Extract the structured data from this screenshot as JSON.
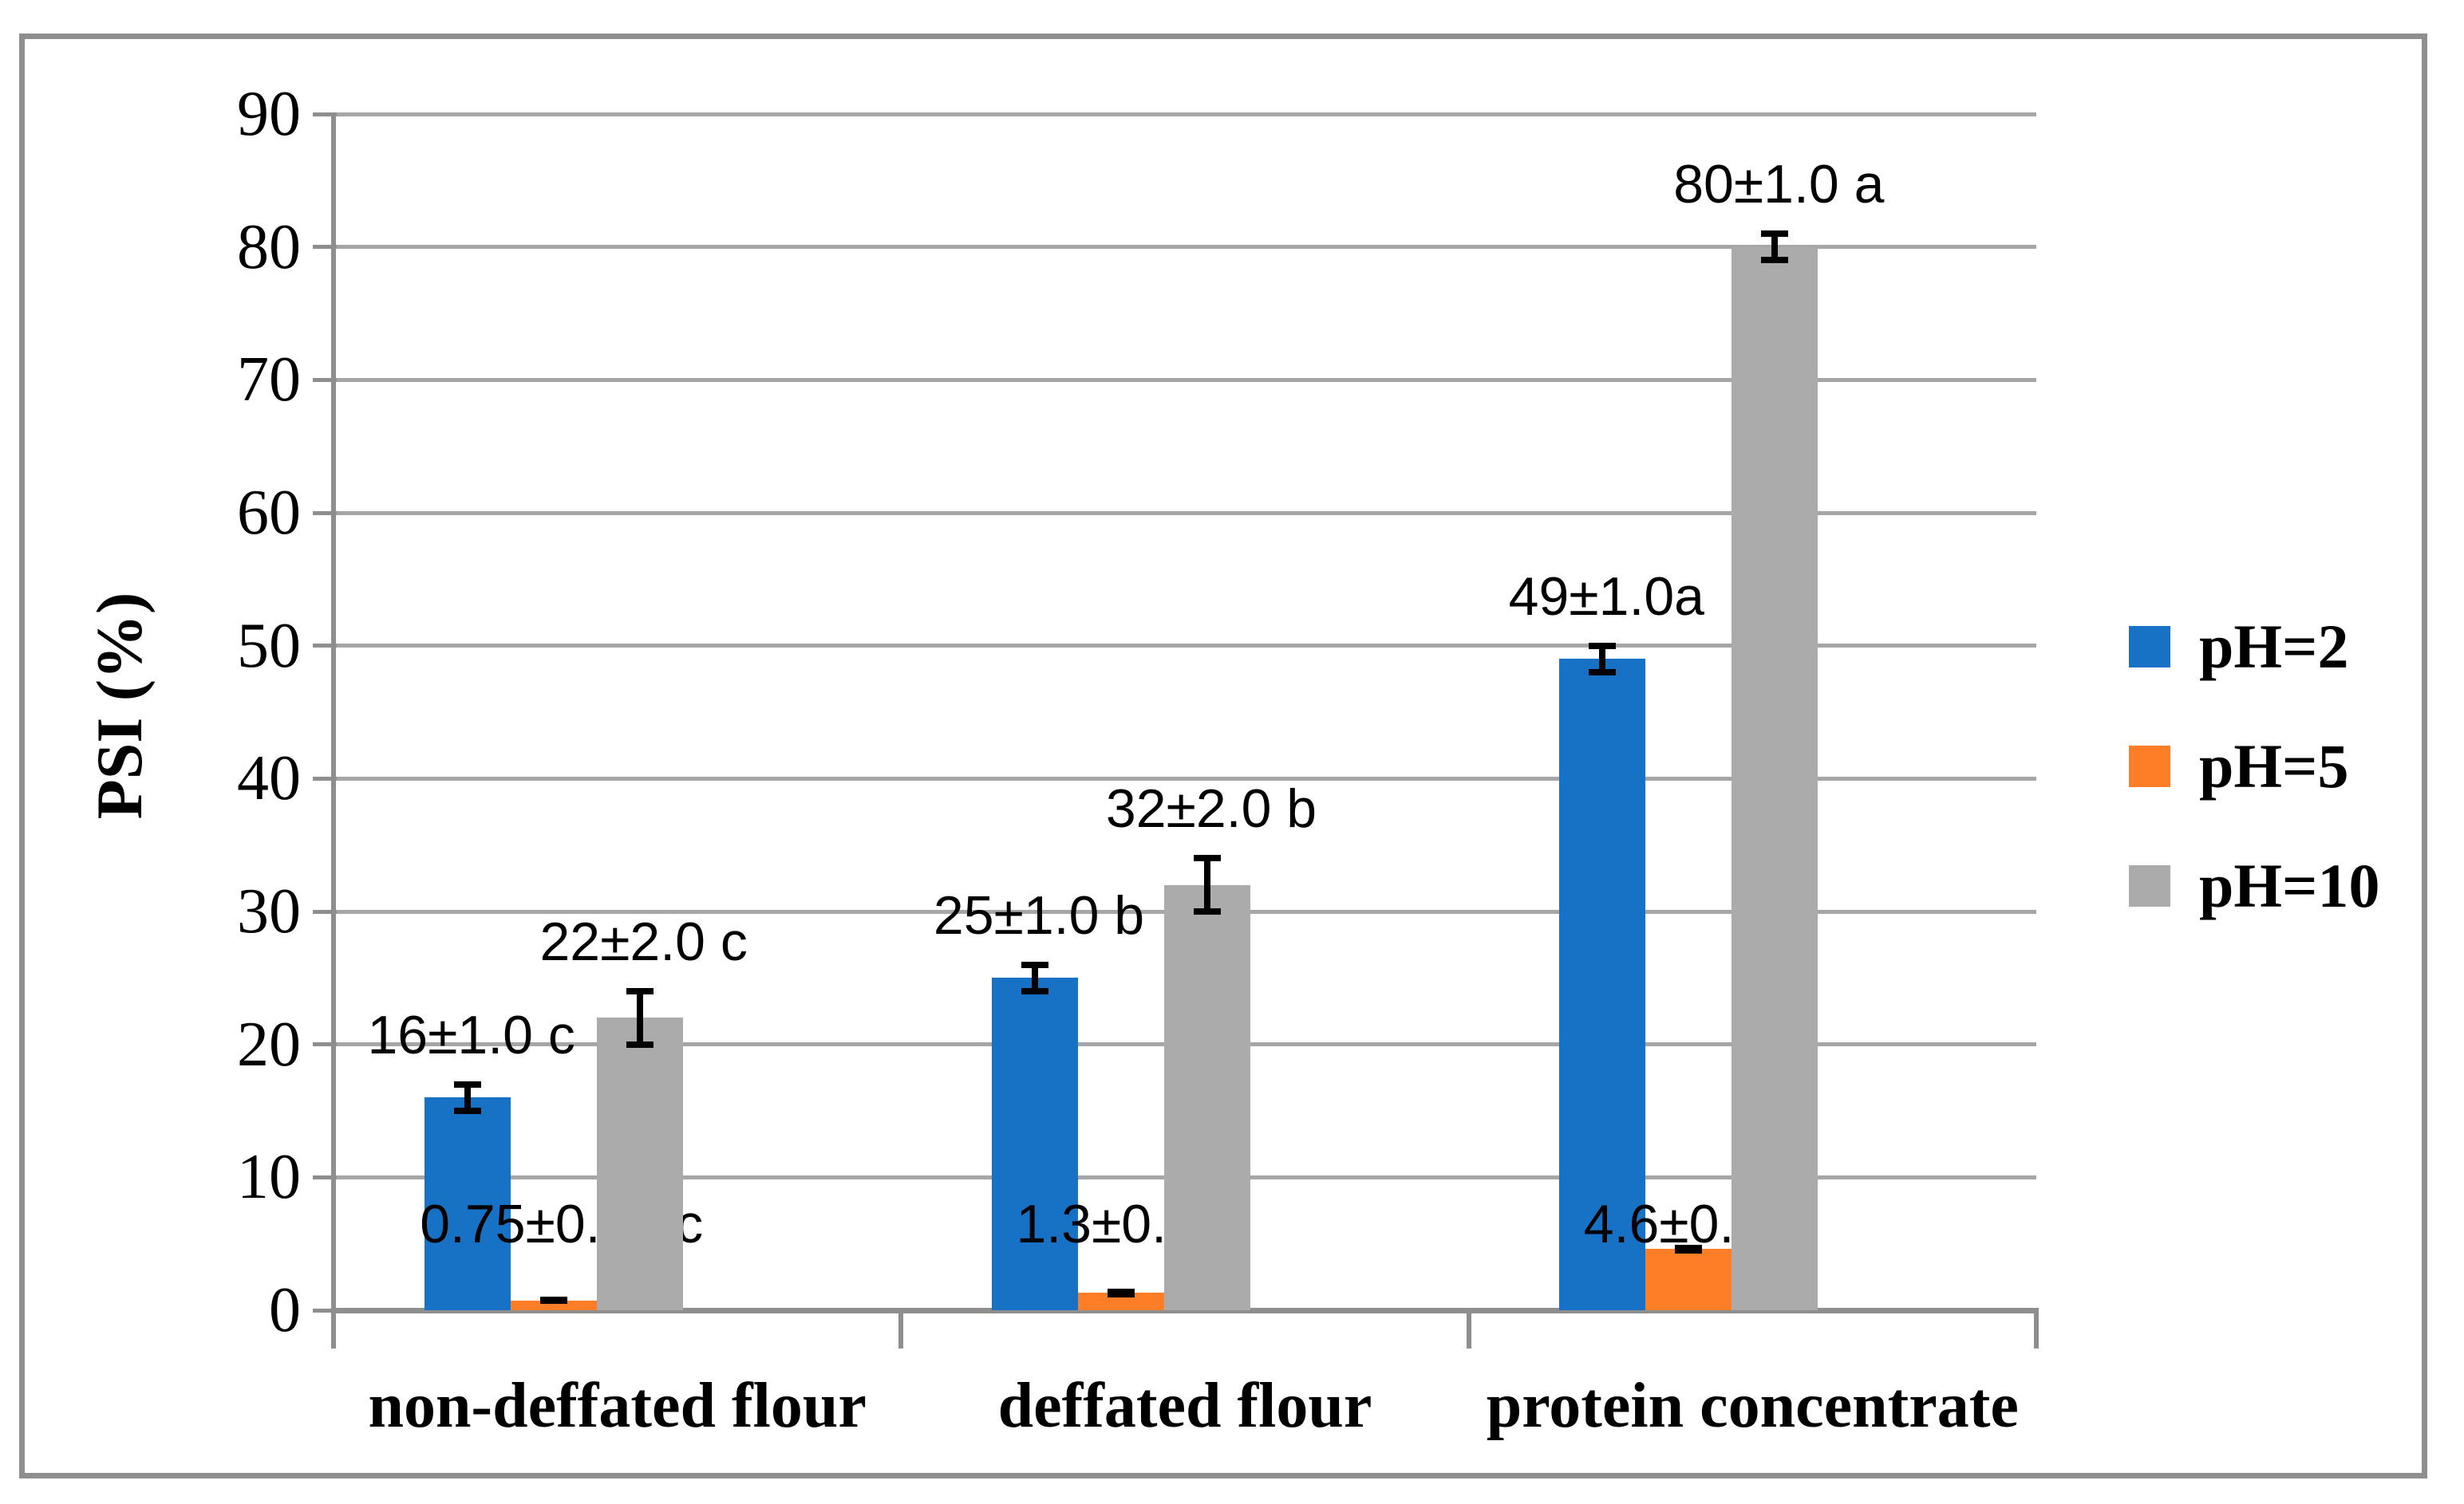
{
  "figure": {
    "frame_color": "#8f8f8f",
    "background": "#ffffff",
    "gridline_color": "#a6a6a6",
    "axis_color": "#8e8e8e",
    "error_bar_color": "#000000"
  },
  "chart_data": {
    "type": "bar",
    "title": "",
    "xlabel": "",
    "ylabel": "PSI (%)",
    "ylim": [
      0,
      90
    ],
    "ytick_step": 10,
    "yticks": [
      0,
      10,
      20,
      30,
      40,
      50,
      60,
      70,
      80,
      90
    ],
    "grid": true,
    "legend_position": "right",
    "categories": [
      "non-deffated flour",
      "deffated flour",
      "protein concentrate"
    ],
    "series": [
      {
        "name": "pH=2",
        "color": "#1772c6",
        "values": [
          16,
          25,
          49
        ],
        "errors": [
          1.0,
          1.0,
          1.0
        ],
        "data_labels": [
          "16±1.0 c",
          "25±1.0 b",
          "49±1.0a"
        ]
      },
      {
        "name": "pH=5",
        "color": "#fd7e27",
        "values": [
          0.75,
          1.3,
          4.6
        ],
        "errors": [
          0.02,
          0.1,
          0.1
        ],
        "data_labels": [
          "0.75±0.02 c",
          "1.3±0.1 b",
          "4.6±0.1 a"
        ]
      },
      {
        "name": "pH=10",
        "color": "#ababab",
        "values": [
          22,
          32,
          80
        ],
        "errors": [
          2.0,
          2.0,
          1.0
        ],
        "data_labels": [
          "22±2.0 c",
          "32±2.0 b",
          "80±1.0 a"
        ]
      }
    ]
  }
}
